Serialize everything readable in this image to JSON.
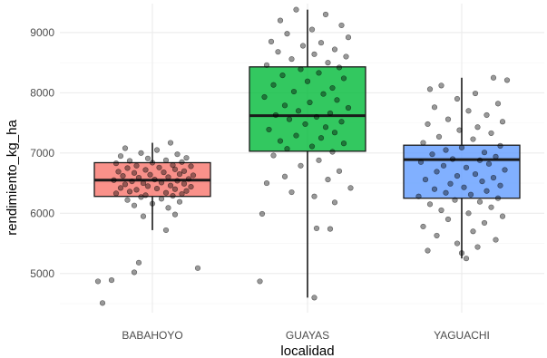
{
  "chart_data": {
    "type": "boxplot",
    "title": "",
    "xlabel": "localidad",
    "ylabel": "rendimiento_kg_ha",
    "categories": [
      "BABAHOYO",
      "GUAYAS",
      "YAGUACHI"
    ],
    "ylim": [
      4350,
      9480
    ],
    "yticks": [
      5000,
      6000,
      7000,
      8000,
      9000
    ],
    "grid": true,
    "legend": "none",
    "box_colors": [
      "#f8766d",
      "#00ba38",
      "#619cff"
    ],
    "boxes": [
      {
        "name": "BABAHOYO",
        "whisker_low": 5720,
        "q1": 6280,
        "median": 6550,
        "q3": 6840,
        "whisker_high": 7170
      },
      {
        "name": "GUAYAS",
        "whisker_low": 4600,
        "q1": 7030,
        "median": 7620,
        "q3": 8430,
        "whisker_high": 9380
      },
      {
        "name": "YAGUACHI",
        "whisker_low": 5250,
        "q1": 6250,
        "median": 6890,
        "q3": 7130,
        "whisker_high": 8250
      }
    ],
    "points": {
      "BABAHOYO": [
        [
          0.08,
          7170
        ],
        [
          -0.12,
          7080
        ],
        [
          0.02,
          7050
        ],
        [
          -0.05,
          7000
        ],
        [
          0.11,
          6980
        ],
        [
          -0.14,
          6950
        ],
        [
          0.15,
          6920
        ],
        [
          -0.02,
          6910
        ],
        [
          0.06,
          6880
        ],
        [
          -0.1,
          6870
        ],
        [
          0.13,
          6850
        ],
        [
          0.0,
          6840
        ],
        [
          -0.16,
          6830
        ],
        [
          0.09,
          6800
        ],
        [
          -0.07,
          6790
        ],
        [
          0.17,
          6780
        ],
        [
          0.03,
          6760
        ],
        [
          -0.11,
          6750
        ],
        [
          0.1,
          6730
        ],
        [
          -0.03,
          6720
        ],
        [
          0.14,
          6700
        ],
        [
          -0.15,
          6690
        ],
        [
          0.05,
          6680
        ],
        [
          -0.08,
          6670
        ],
        [
          0.12,
          6650
        ],
        [
          -0.01,
          6640
        ],
        [
          0.18,
          6630
        ],
        [
          -0.13,
          6620
        ],
        [
          0.07,
          6600
        ],
        [
          -0.06,
          6590
        ],
        [
          0.16,
          6570
        ],
        [
          0.01,
          6560
        ],
        [
          -0.17,
          6550
        ],
        [
          0.11,
          6540
        ],
        [
          -0.09,
          6530
        ],
        [
          0.04,
          6510
        ],
        [
          -0.04,
          6500
        ],
        [
          0.14,
          6490
        ],
        [
          -0.12,
          6480
        ],
        [
          0.08,
          6460
        ],
        [
          -0.02,
          6450
        ],
        [
          0.17,
          6440
        ],
        [
          -0.14,
          6420
        ],
        [
          0.02,
          6410
        ],
        [
          0.1,
          6400
        ],
        [
          -0.07,
          6390
        ],
        [
          0.15,
          6370
        ],
        [
          -0.1,
          6360
        ],
        [
          0.06,
          6340
        ],
        [
          -0.16,
          6330
        ],
        [
          0.13,
          6320
        ],
        [
          -0.03,
          6300
        ],
        [
          0.09,
          6290
        ],
        [
          -0.05,
          6270
        ],
        [
          0.04,
          6240
        ],
        [
          -0.11,
          6220
        ],
        [
          0.12,
          6190
        ],
        [
          0.0,
          6160
        ],
        [
          -0.08,
          6130
        ],
        [
          0.07,
          6090
        ],
        [
          0.1,
          5980
        ],
        [
          -0.04,
          5950
        ],
        [
          0.06,
          5720
        ],
        [
          0.2,
          5090
        ],
        [
          -0.06,
          5180
        ],
        [
          -0.08,
          5020
        ],
        [
          -0.18,
          4890
        ],
        [
          -0.24,
          4870
        ],
        [
          -0.22,
          4510
        ]
      ],
      "GUAYAS": [
        [
          -0.05,
          9380
        ],
        [
          0.08,
          9300
        ],
        [
          -0.12,
          9200
        ],
        [
          0.15,
          9120
        ],
        [
          0.02,
          9050
        ],
        [
          -0.09,
          8980
        ],
        [
          0.18,
          8920
        ],
        [
          -0.16,
          8850
        ],
        [
          0.06,
          8830
        ],
        [
          -0.02,
          8780
        ],
        [
          0.12,
          8720
        ],
        [
          -0.13,
          8680
        ],
        [
          0.03,
          8640
        ],
        [
          0.17,
          8600
        ],
        [
          -0.07,
          8560
        ],
        [
          0.09,
          8500
        ],
        [
          -0.18,
          8460
        ],
        [
          0.14,
          8420
        ],
        [
          -0.03,
          8390
        ],
        [
          0.05,
          8330
        ],
        [
          -0.11,
          8290
        ],
        [
          0.16,
          8240
        ],
        [
          0.0,
          8190
        ],
        [
          -0.15,
          8130
        ],
        [
          0.11,
          8080
        ],
        [
          -0.06,
          8020
        ],
        [
          0.07,
          7980
        ],
        [
          -0.19,
          7930
        ],
        [
          0.13,
          7880
        ],
        [
          0.01,
          7840
        ],
        [
          -0.1,
          7790
        ],
        [
          0.18,
          7750
        ],
        [
          -0.04,
          7700
        ],
        [
          0.1,
          7660
        ],
        [
          -0.14,
          7630
        ],
        [
          0.04,
          7600
        ],
        [
          -0.08,
          7560
        ],
        [
          0.15,
          7520
        ],
        [
          -0.01,
          7480
        ],
        [
          0.08,
          7430
        ],
        [
          -0.17,
          7390
        ],
        [
          0.12,
          7340
        ],
        [
          -0.05,
          7290
        ],
        [
          0.06,
          7250
        ],
        [
          -0.12,
          7200
        ],
        [
          0.16,
          7160
        ],
        [
          0.02,
          7110
        ],
        [
          -0.09,
          7070
        ],
        [
          0.11,
          7020
        ],
        [
          -0.15,
          6960
        ],
        [
          0.05,
          6880
        ],
        [
          -0.03,
          6790
        ],
        [
          0.14,
          6700
        ],
        [
          -0.1,
          6610
        ],
        [
          0.09,
          6560
        ],
        [
          -0.18,
          6500
        ],
        [
          0.19,
          6420
        ],
        [
          -0.07,
          6350
        ],
        [
          0.03,
          6280
        ],
        [
          0.12,
          6180
        ],
        [
          -0.2,
          5990
        ],
        [
          0.04,
          5750
        ],
        [
          0.1,
          5740
        ],
        [
          -0.21,
          4870
        ],
        [
          0.03,
          4600
        ]
      ],
      "YAGUACHI": [
        [
          0.14,
          8250
        ],
        [
          0.2,
          8210
        ],
        [
          -0.09,
          8120
        ],
        [
          -0.14,
          8060
        ],
        [
          0.06,
          7990
        ],
        [
          -0.02,
          7900
        ],
        [
          0.16,
          7820
        ],
        [
          -0.12,
          7760
        ],
        [
          0.03,
          7700
        ],
        [
          0.11,
          7630
        ],
        [
          -0.06,
          7560
        ],
        [
          0.18,
          7520
        ],
        [
          -0.15,
          7480
        ],
        [
          0.07,
          7430
        ],
        [
          -0.01,
          7380
        ],
        [
          0.13,
          7330
        ],
        [
          -0.1,
          7270
        ],
        [
          0.05,
          7230
        ],
        [
          -0.17,
          7170
        ],
        [
          0.17,
          7120
        ],
        [
          0.0,
          7090
        ],
        [
          -0.07,
          7050
        ],
        [
          0.1,
          7010
        ],
        [
          -0.13,
          6980
        ],
        [
          0.15,
          6940
        ],
        [
          -0.04,
          6900
        ],
        [
          0.08,
          6880
        ],
        [
          -0.18,
          6850
        ],
        [
          0.12,
          6820
        ],
        [
          -0.08,
          6790
        ],
        [
          0.02,
          6760
        ],
        [
          0.19,
          6720
        ],
        [
          -0.11,
          6690
        ],
        [
          0.06,
          6650
        ],
        [
          -0.02,
          6620
        ],
        [
          0.14,
          6590
        ],
        [
          -0.16,
          6560
        ],
        [
          0.09,
          6530
        ],
        [
          -0.05,
          6490
        ],
        [
          0.17,
          6460
        ],
        [
          0.01,
          6430
        ],
        [
          -0.12,
          6400
        ],
        [
          0.11,
          6370
        ],
        [
          -0.07,
          6340
        ],
        [
          0.04,
          6310
        ],
        [
          -0.19,
          6280
        ],
        [
          0.16,
          6250
        ],
        [
          -0.03,
          6220
        ],
        [
          0.08,
          6190
        ],
        [
          -0.14,
          6150
        ],
        [
          0.13,
          6100
        ],
        [
          -0.09,
          6050
        ],
        [
          0.03,
          6000
        ],
        [
          0.18,
          5950
        ],
        [
          -0.06,
          5900
        ],
        [
          0.1,
          5840
        ],
        [
          -0.17,
          5780
        ],
        [
          0.05,
          5700
        ],
        [
          -0.11,
          5630
        ],
        [
          0.15,
          5560
        ],
        [
          -0.02,
          5500
        ],
        [
          0.07,
          5440
        ],
        [
          -0.15,
          5380
        ],
        [
          0.0,
          5340
        ],
        [
          0.02,
          5250
        ]
      ]
    }
  }
}
